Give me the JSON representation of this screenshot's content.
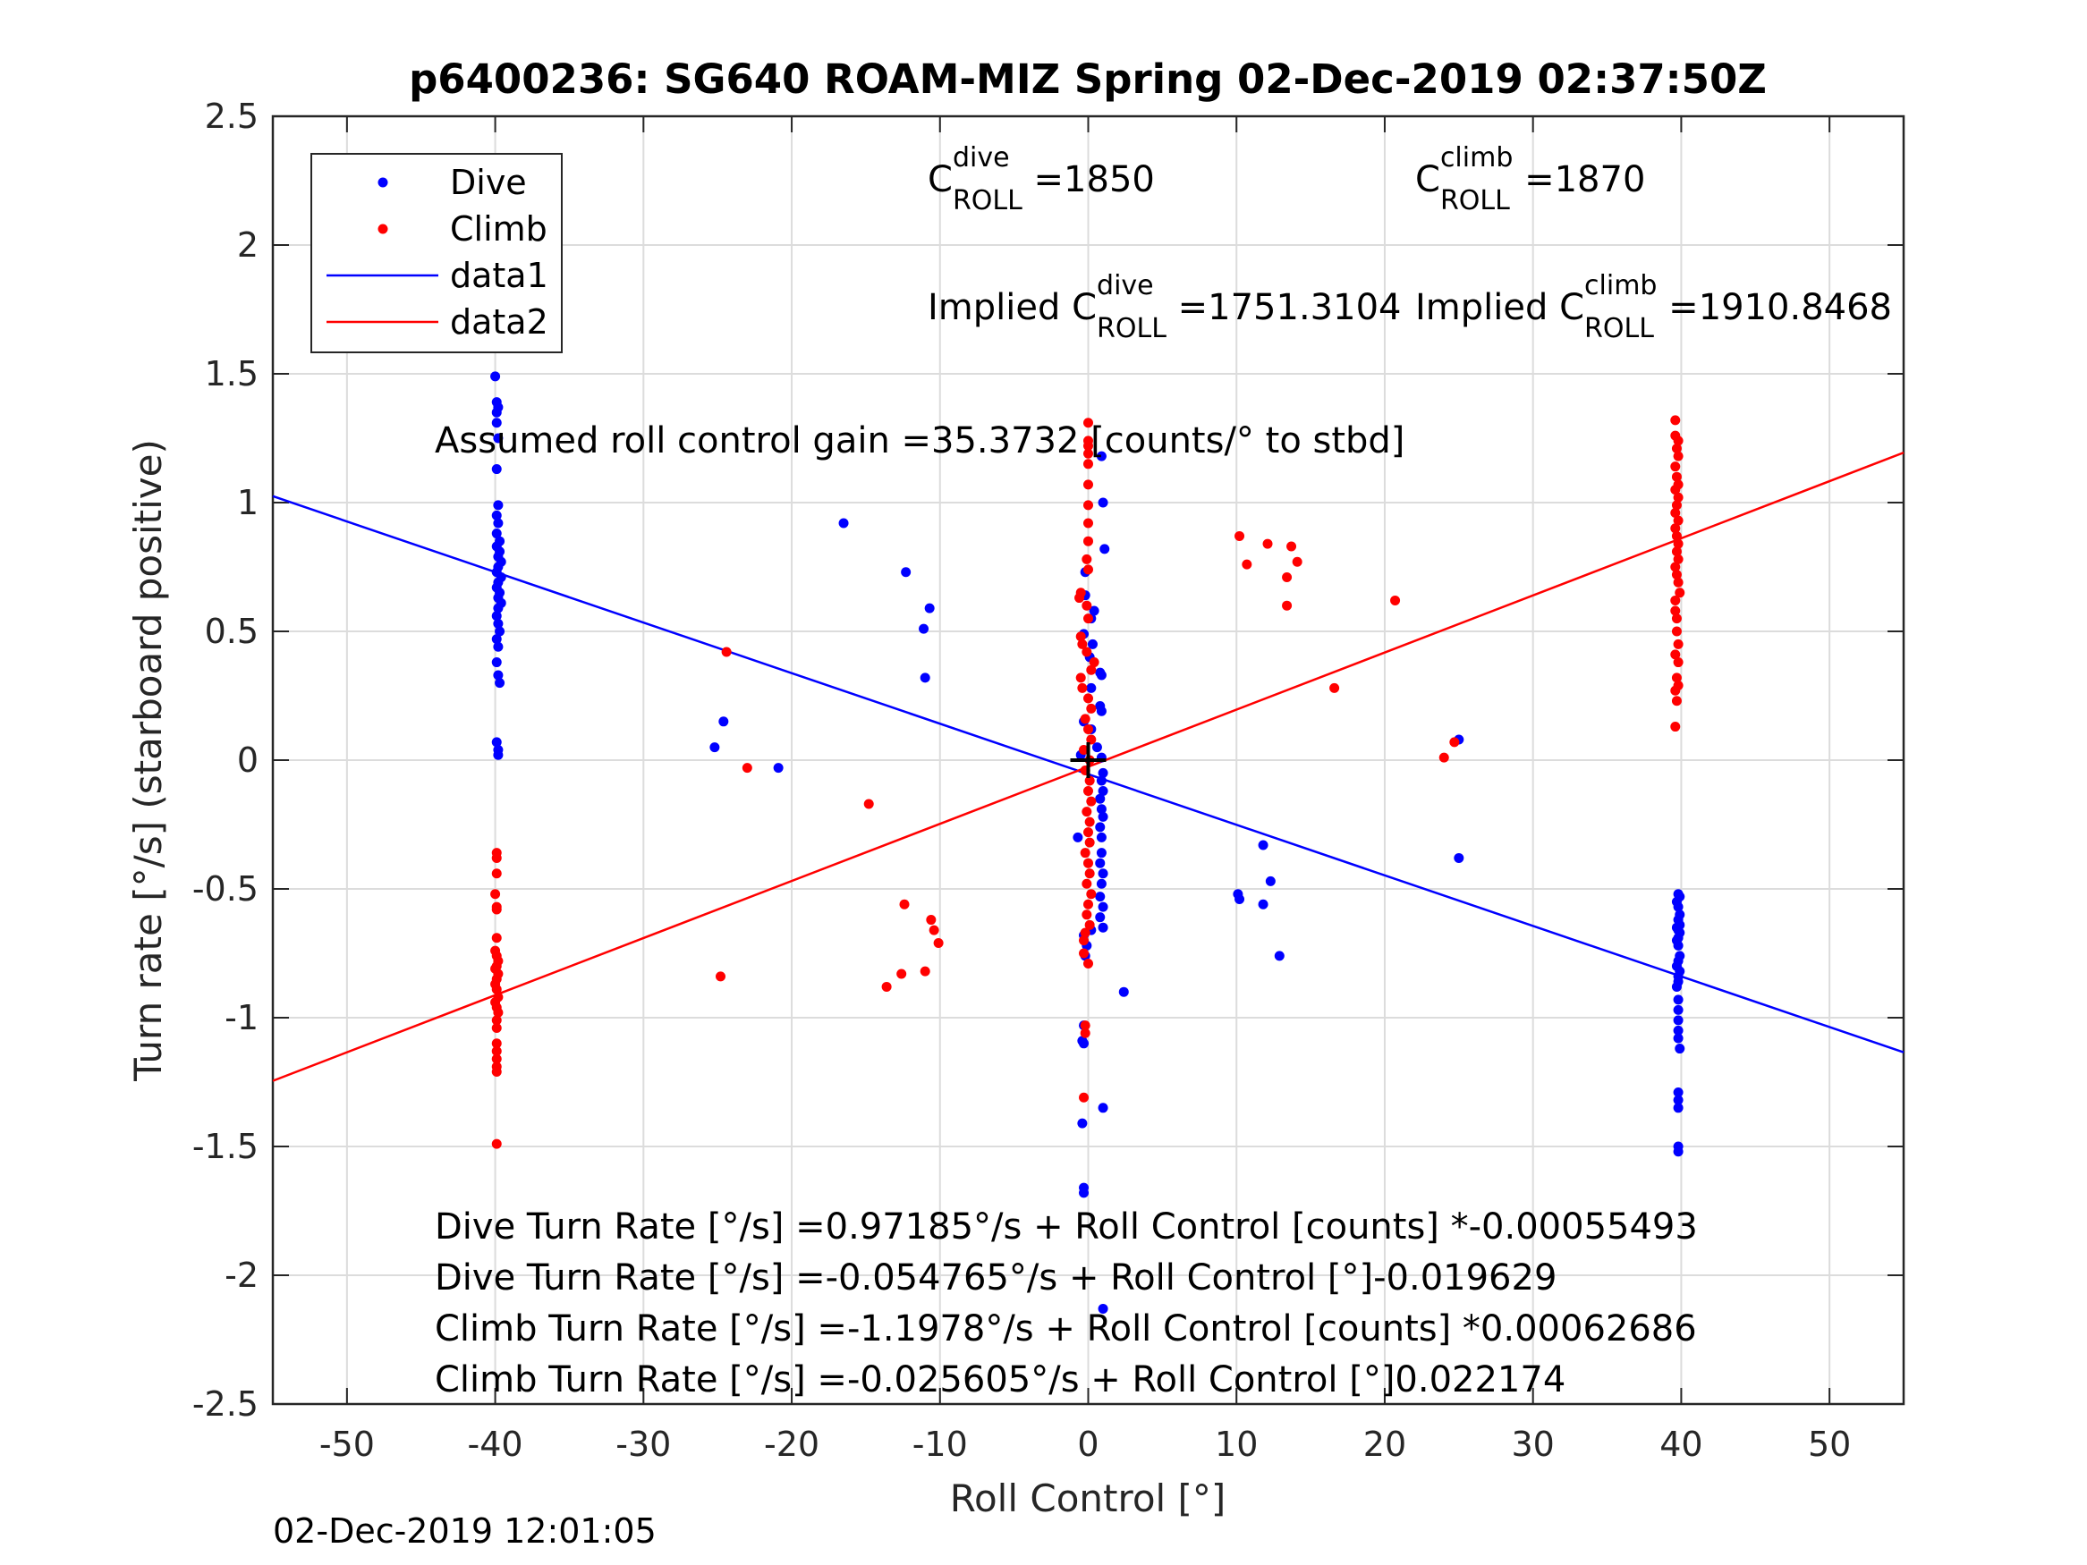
{
  "chart_data": {
    "type": "scatter",
    "title": "p6400236: SG640 ROAM-MIZ Spring 02-Dec-2019 02:37:50Z",
    "xlabel": "Roll Control [°]",
    "ylabel": "Turn rate [°/s] (starboard positive)",
    "xlim": [
      -55,
      55
    ],
    "ylim": [
      -2.5,
      2.5
    ],
    "grid": true,
    "legend_position": "top-left",
    "xticks": [
      -50,
      -40,
      -30,
      -20,
      -10,
      0,
      10,
      20,
      30,
      40,
      50
    ],
    "yticks": [
      2.5,
      2,
      1.5,
      1,
      0.5,
      0,
      -0.5,
      -1,
      -1.5,
      -2,
      -2.5
    ],
    "ytick_labels": [
      "2.5",
      "2",
      "1.5",
      "1",
      "0.5",
      "0",
      "-0.5",
      "-1",
      "-1.5",
      "-2",
      "-2.5"
    ],
    "legend": [
      {
        "label": "Dive",
        "kind": "marker",
        "color": "#0000ff"
      },
      {
        "label": "Climb",
        "kind": "marker",
        "color": "#ff0000"
      },
      {
        "label": "data1",
        "kind": "line",
        "color": "#0000ff"
      },
      {
        "label": "data2",
        "kind": "line",
        "color": "#ff0000"
      }
    ],
    "lines": [
      {
        "name": "data1",
        "color": "#0000ff",
        "intercept": -0.054765,
        "slope": -0.019629
      },
      {
        "name": "data2",
        "color": "#ff0000",
        "intercept": -0.025605,
        "slope": 0.022174
      }
    ],
    "marker": {
      "name": "center-crosshair",
      "x": 0,
      "y": 0
    },
    "series": [
      {
        "name": "Dive",
        "color": "#0000ff",
        "points": [
          [
            -40,
            1.49
          ],
          [
            -39.9,
            1.39
          ],
          [
            -39.8,
            1.37
          ],
          [
            -39.9,
            1.35
          ],
          [
            -39.9,
            1.31
          ],
          [
            -39.8,
            1.25
          ],
          [
            -39.9,
            1.13
          ],
          [
            -39.8,
            0.99
          ],
          [
            -39.9,
            0.95
          ],
          [
            -39.8,
            0.92
          ],
          [
            -39.9,
            0.88
          ],
          [
            -39.7,
            0.85
          ],
          [
            -39.9,
            0.83
          ],
          [
            -39.7,
            0.81
          ],
          [
            -39.8,
            0.79
          ],
          [
            -39.6,
            0.77
          ],
          [
            -39.8,
            0.75
          ],
          [
            -39.9,
            0.73
          ],
          [
            -39.6,
            0.71
          ],
          [
            -39.8,
            0.69
          ],
          [
            -39.9,
            0.67
          ],
          [
            -39.7,
            0.65
          ],
          [
            -39.8,
            0.63
          ],
          [
            -39.6,
            0.61
          ],
          [
            -39.8,
            0.59
          ],
          [
            -39.9,
            0.56
          ],
          [
            -39.8,
            0.53
          ],
          [
            -39.7,
            0.5
          ],
          [
            -39.9,
            0.47
          ],
          [
            -39.8,
            0.44
          ],
          [
            -39.9,
            0.38
          ],
          [
            -39.8,
            0.33
          ],
          [
            -39.7,
            0.3
          ],
          [
            -39.9,
            0.07
          ],
          [
            -39.8,
            0.04
          ],
          [
            -39.8,
            0.02
          ],
          [
            -16.5,
            0.92
          ],
          [
            -12.3,
            0.73
          ],
          [
            -10.7,
            0.59
          ],
          [
            -11.1,
            0.51
          ],
          [
            -11.0,
            0.32
          ],
          [
            -24.6,
            0.15
          ],
          [
            -25.2,
            0.05
          ],
          [
            -20.9,
            -0.03
          ],
          [
            0.9,
            1.18
          ],
          [
            1.0,
            1.0
          ],
          [
            1.1,
            0.82
          ],
          [
            -0.2,
            0.73
          ],
          [
            -0.2,
            0.64
          ],
          [
            0.4,
            0.58
          ],
          [
            0.2,
            0.55
          ],
          [
            -0.3,
            0.49
          ],
          [
            0.3,
            0.45
          ],
          [
            0.1,
            0.4
          ],
          [
            0.8,
            0.34
          ],
          [
            0.9,
            0.33
          ],
          [
            0.2,
            0.28
          ],
          [
            0.8,
            0.21
          ],
          [
            0.9,
            0.19
          ],
          [
            -0.3,
            0.15
          ],
          [
            0.2,
            0.12
          ],
          [
            0.6,
            0.05
          ],
          [
            -0.5,
            0.02
          ],
          [
            0.9,
            0.01
          ],
          [
            1.0,
            -0.05
          ],
          [
            0.9,
            -0.08
          ],
          [
            1.0,
            -0.12
          ],
          [
            0.8,
            -0.15
          ],
          [
            0.9,
            -0.19
          ],
          [
            1.0,
            -0.22
          ],
          [
            0.8,
            -0.26
          ],
          [
            0.9,
            -0.3
          ],
          [
            -0.7,
            -0.3
          ],
          [
            0.9,
            -0.36
          ],
          [
            0.8,
            -0.4
          ],
          [
            1.0,
            -0.44
          ],
          [
            0.9,
            -0.48
          ],
          [
            0.8,
            -0.53
          ],
          [
            1.0,
            -0.57
          ],
          [
            0.8,
            -0.61
          ],
          [
            1.0,
            -0.65
          ],
          [
            0.2,
            -0.66
          ],
          [
            -0.3,
            -0.68
          ],
          [
            -0.1,
            -0.72
          ],
          [
            -0.2,
            -0.76
          ],
          [
            2.4,
            -0.9
          ],
          [
            -0.3,
            -1.03
          ],
          [
            -0.4,
            -1.09
          ],
          [
            -0.3,
            -1.1
          ],
          [
            1.0,
            -1.35
          ],
          [
            -0.4,
            -1.41
          ],
          [
            -0.3,
            -1.66
          ],
          [
            -0.3,
            -1.68
          ],
          [
            1.0,
            -2.13
          ],
          [
            10.1,
            -0.52
          ],
          [
            10.2,
            -0.54
          ],
          [
            11.8,
            -0.33
          ],
          [
            12.3,
            -0.47
          ],
          [
            11.8,
            -0.56
          ],
          [
            12.9,
            -0.76
          ],
          [
            25.0,
            0.08
          ],
          [
            25.0,
            -0.38
          ],
          [
            39.8,
            -0.52
          ],
          [
            39.9,
            -0.53
          ],
          [
            39.7,
            -0.55
          ],
          [
            39.8,
            -0.57
          ],
          [
            39.9,
            -0.6
          ],
          [
            39.8,
            -0.62
          ],
          [
            39.9,
            -0.64
          ],
          [
            39.7,
            -0.65
          ],
          [
            39.8,
            -0.66
          ],
          [
            39.9,
            -0.67
          ],
          [
            39.8,
            -0.69
          ],
          [
            39.7,
            -0.7
          ],
          [
            39.8,
            -0.72
          ],
          [
            39.9,
            -0.76
          ],
          [
            39.8,
            -0.78
          ],
          [
            39.7,
            -0.8
          ],
          [
            39.9,
            -0.82
          ],
          [
            39.8,
            -0.84
          ],
          [
            39.8,
            -0.86
          ],
          [
            39.7,
            -0.88
          ],
          [
            39.8,
            -0.93
          ],
          [
            39.8,
            -0.97
          ],
          [
            39.8,
            -1.01
          ],
          [
            39.8,
            -1.05
          ],
          [
            39.8,
            -1.08
          ],
          [
            39.9,
            -1.12
          ],
          [
            39.8,
            -1.29
          ],
          [
            39.8,
            -1.32
          ],
          [
            39.8,
            -1.35
          ],
          [
            39.8,
            -1.5
          ],
          [
            39.8,
            -1.52
          ]
        ]
      },
      {
        "name": "Climb",
        "color": "#ff0000",
        "points": [
          [
            -39.9,
            -0.36
          ],
          [
            -39.9,
            -0.38
          ],
          [
            -39.9,
            -0.44
          ],
          [
            -40.0,
            -0.52
          ],
          [
            -39.9,
            -0.57
          ],
          [
            -39.9,
            -0.58
          ],
          [
            -39.9,
            -0.69
          ],
          [
            -40.0,
            -0.74
          ],
          [
            -39.9,
            -0.76
          ],
          [
            -39.8,
            -0.78
          ],
          [
            -39.9,
            -0.8
          ],
          [
            -40.0,
            -0.81
          ],
          [
            -39.8,
            -0.83
          ],
          [
            -39.9,
            -0.85
          ],
          [
            -40.0,
            -0.87
          ],
          [
            -39.9,
            -0.89
          ],
          [
            -39.8,
            -0.92
          ],
          [
            -40.0,
            -0.94
          ],
          [
            -39.9,
            -0.96
          ],
          [
            -39.8,
            -0.98
          ],
          [
            -39.9,
            -1.01
          ],
          [
            -39.9,
            -1.04
          ],
          [
            -39.9,
            -1.1
          ],
          [
            -39.9,
            -1.13
          ],
          [
            -39.9,
            -1.16
          ],
          [
            -39.9,
            -1.19
          ],
          [
            -39.9,
            -1.21
          ],
          [
            -39.9,
            -1.49
          ],
          [
            -24.4,
            0.42
          ],
          [
            -23.0,
            -0.03
          ],
          [
            -14.8,
            -0.17
          ],
          [
            -24.8,
            -0.84
          ],
          [
            -12.4,
            -0.56
          ],
          [
            -13.6,
            -0.88
          ],
          [
            -12.6,
            -0.83
          ],
          [
            -11.0,
            -0.82
          ],
          [
            -10.6,
            -0.62
          ],
          [
            -10.4,
            -0.66
          ],
          [
            -10.1,
            -0.71
          ],
          [
            0.0,
            1.31
          ],
          [
            0.0,
            1.24
          ],
          [
            0.0,
            1.22
          ],
          [
            0.0,
            1.19
          ],
          [
            0.0,
            1.15
          ],
          [
            0.0,
            1.07
          ],
          [
            0.0,
            0.99
          ],
          [
            0.0,
            0.92
          ],
          [
            0.0,
            0.85
          ],
          [
            -0.1,
            0.78
          ],
          [
            0.0,
            0.74
          ],
          [
            -0.5,
            0.65
          ],
          [
            -0.6,
            0.63
          ],
          [
            -0.1,
            0.6
          ],
          [
            0.0,
            0.55
          ],
          [
            -0.5,
            0.48
          ],
          [
            -0.4,
            0.45
          ],
          [
            -0.1,
            0.42
          ],
          [
            0.4,
            0.38
          ],
          [
            0.2,
            0.35
          ],
          [
            -0.5,
            0.32
          ],
          [
            -0.4,
            0.28
          ],
          [
            0.0,
            0.24
          ],
          [
            0.2,
            0.2
          ],
          [
            -0.2,
            0.16
          ],
          [
            0.0,
            0.12
          ],
          [
            0.2,
            0.08
          ],
          [
            -0.3,
            0.04
          ],
          [
            0.1,
            0.0
          ],
          [
            -0.2,
            -0.04
          ],
          [
            0.1,
            -0.08
          ],
          [
            0.0,
            -0.12
          ],
          [
            0.2,
            -0.16
          ],
          [
            -0.1,
            -0.2
          ],
          [
            0.1,
            -0.24
          ],
          [
            0.0,
            -0.28
          ],
          [
            0.1,
            -0.32
          ],
          [
            -0.2,
            -0.36
          ],
          [
            0.0,
            -0.4
          ],
          [
            0.1,
            -0.44
          ],
          [
            -0.1,
            -0.48
          ],
          [
            0.2,
            -0.52
          ],
          [
            0.0,
            -0.56
          ],
          [
            -0.1,
            -0.6
          ],
          [
            0.1,
            -0.64
          ],
          [
            -0.2,
            -0.67
          ],
          [
            -0.3,
            -0.7
          ],
          [
            -0.3,
            -0.75
          ],
          [
            0.0,
            -0.79
          ],
          [
            -0.3,
            -1.31
          ],
          [
            -0.2,
            -1.03
          ],
          [
            -0.2,
            -1.06
          ],
          [
            10.2,
            0.87
          ],
          [
            10.7,
            0.76
          ],
          [
            12.1,
            0.84
          ],
          [
            13.7,
            0.83
          ],
          [
            14.1,
            0.77
          ],
          [
            13.4,
            0.71
          ],
          [
            13.4,
            0.6
          ],
          [
            16.6,
            0.28
          ],
          [
            20.7,
            0.62
          ],
          [
            24.0,
            0.01
          ],
          [
            24.7,
            0.07
          ],
          [
            39.6,
            1.32
          ],
          [
            39.6,
            1.26
          ],
          [
            39.8,
            1.24
          ],
          [
            39.7,
            1.21
          ],
          [
            39.8,
            1.18
          ],
          [
            39.6,
            1.14
          ],
          [
            39.7,
            1.1
          ],
          [
            39.8,
            1.07
          ],
          [
            39.6,
            1.05
          ],
          [
            39.8,
            1.02
          ],
          [
            39.7,
            0.99
          ],
          [
            39.6,
            0.96
          ],
          [
            39.8,
            0.93
          ],
          [
            39.6,
            0.9
          ],
          [
            39.7,
            0.87
          ],
          [
            39.8,
            0.84
          ],
          [
            39.7,
            0.81
          ],
          [
            39.8,
            0.78
          ],
          [
            39.6,
            0.75
          ],
          [
            39.7,
            0.72
          ],
          [
            39.8,
            0.69
          ],
          [
            39.9,
            0.65
          ],
          [
            39.6,
            0.62
          ],
          [
            39.6,
            0.58
          ],
          [
            39.7,
            0.55
          ],
          [
            39.7,
            0.5
          ],
          [
            39.8,
            0.45
          ],
          [
            39.6,
            0.41
          ],
          [
            39.8,
            0.38
          ],
          [
            39.7,
            0.32
          ],
          [
            39.8,
            0.29
          ],
          [
            39.6,
            0.27
          ],
          [
            39.7,
            0.23
          ],
          [
            39.6,
            0.13
          ]
        ]
      }
    ],
    "annotations": [
      {
        "id": "c_roll_dive",
        "prefix": "C",
        "sup": "dive",
        "sub": "ROLL",
        "suffix": " =1850"
      },
      {
        "id": "c_roll_climb",
        "prefix": "C",
        "sup": "climb",
        "sub": "ROLL",
        "suffix": " =1870"
      },
      {
        "id": "implied_dive",
        "prefix": "Implied C",
        "sup": "dive",
        "sub": "ROLL",
        "suffix": " =1751.3104"
      },
      {
        "id": "implied_climb",
        "prefix": "Implied C",
        "sup": "climb",
        "sub": "ROLL",
        "suffix": " =1910.8468"
      }
    ],
    "gain_text": "Assumed roll control gain =35.3732 [counts/° to stbd]",
    "fit_texts": [
      "Dive Turn Rate [°/s] =0.97185°/s + Roll Control [counts] *-0.00055493",
      "Dive Turn Rate [°/s] =-0.054765°/s + Roll Control [°]-0.019629",
      "Climb Turn Rate [°/s] =-1.1978°/s + Roll Control [counts] *0.00062686",
      "Climb Turn Rate [°/s] =-0.025605°/s + Roll Control [°]0.022174"
    ]
  },
  "footer": {
    "timestamp": "02-Dec-2019 12:01:05"
  }
}
